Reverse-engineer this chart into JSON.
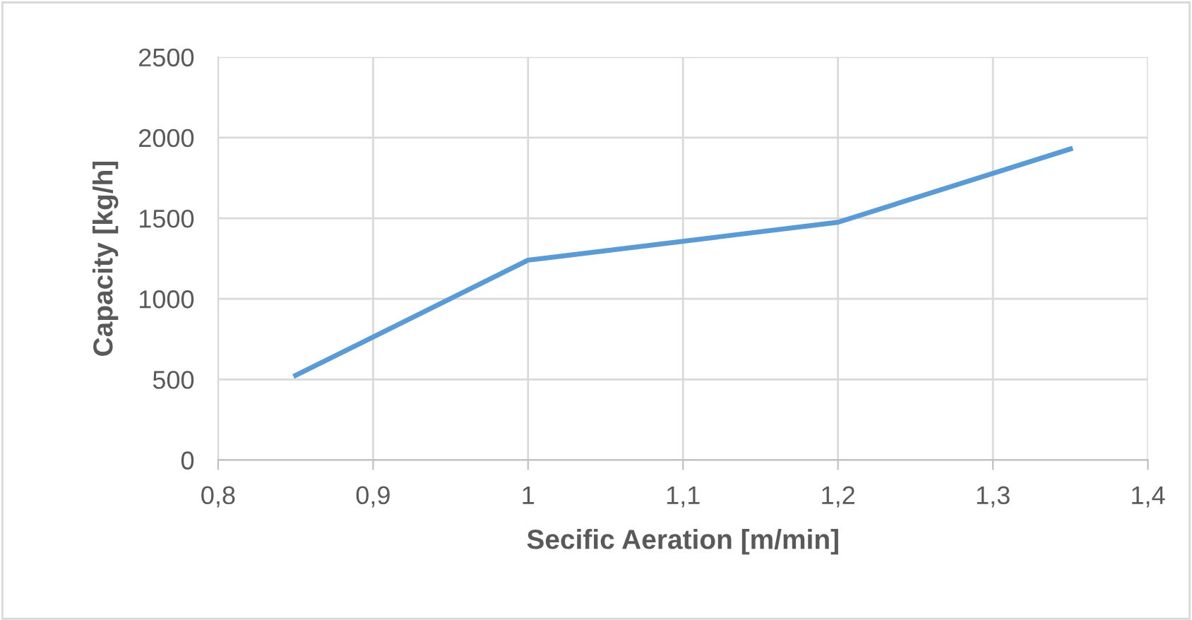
{
  "chart_data": {
    "type": "line",
    "xlabel": "Secific Aeration [m/min]",
    "ylabel": "Capacity [kg/h]",
    "x": [
      0.85,
      1.0,
      1.2,
      1.35
    ],
    "series": [
      {
        "color": "#5b9bd5",
        "values": [
          525,
          1240,
          1475,
          1930
        ]
      }
    ],
    "xlim": [
      0.8,
      1.4
    ],
    "xticks": [
      {
        "value": 0.8,
        "label": "0,8"
      },
      {
        "value": 0.9,
        "label": "0,9"
      },
      1,
      {
        "value": 1.1,
        "label": "1,1"
      },
      {
        "value": 1.2,
        "label": "1,2"
      },
      {
        "value": 1.3,
        "label": "1,3"
      },
      {
        "value": 1.4,
        "label": "1,4"
      }
    ],
    "ylim": [
      0,
      2500
    ],
    "yticks": [
      0,
      500,
      1000,
      1500,
      2000,
      2500
    ],
    "grid": true,
    "marker": "none",
    "line_style": "solid",
    "legend": false
  }
}
